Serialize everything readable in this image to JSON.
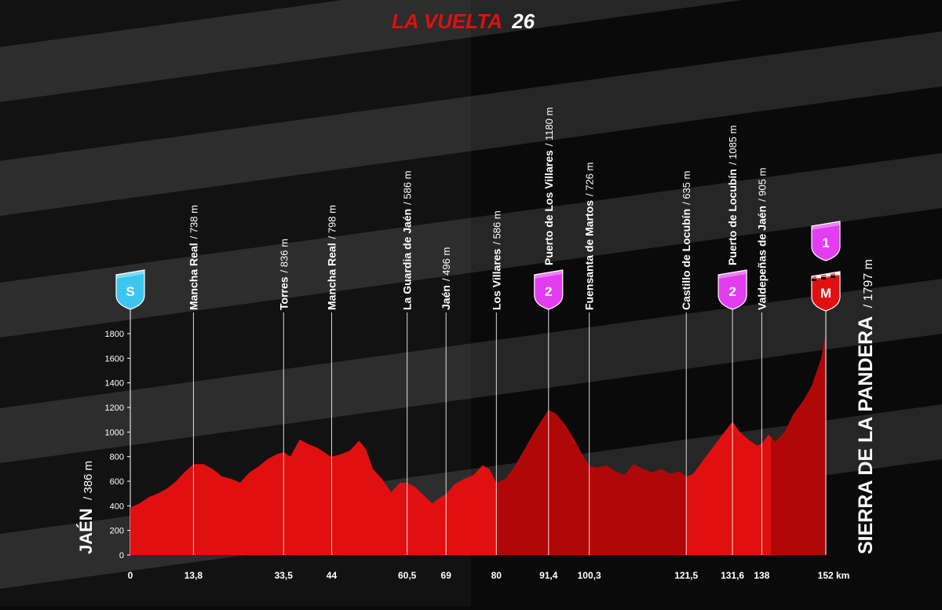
{
  "header": {
    "brand": "LA VUELTA",
    "edition": "26"
  },
  "colors": {
    "profile": "#e01010",
    "profile_dark": "#b00808",
    "start_badge": "#3cc6ef",
    "kom_badge": "#e23df0",
    "finish_badge": "#e01010",
    "background": "#0a0a0a",
    "stripe": "#262626"
  },
  "start": {
    "name": "JAÉN",
    "altitude": "/ 386 m",
    "badge": "S",
    "icon": "start-flag-icon"
  },
  "finish": {
    "name": "SIERRA DE LA PANDERA",
    "altitude": "/ 1797 m",
    "badge_top": "1",
    "badge_bottom": "M",
    "icon": "finish-flag-icon"
  },
  "chart_data": {
    "type": "area",
    "title": "",
    "xlabel": "",
    "ylabel": "",
    "xlim": [
      0,
      152
    ],
    "ylim": [
      0,
      1800
    ],
    "y_ticks": [
      0,
      200,
      400,
      600,
      800,
      1000,
      1200,
      1400,
      1600,
      1800
    ],
    "x_tick_labels": [
      "0",
      "13,8",
      "33,5",
      "44",
      "60,5",
      "69",
      "80",
      "91,4",
      "100,3",
      "121,5",
      "131,6",
      "138",
      "152 km"
    ],
    "x_tick_values": [
      0,
      13.8,
      33.5,
      44,
      60.5,
      69,
      80,
      91.4,
      100.3,
      121.5,
      131.6,
      138,
      152
    ],
    "grid": false,
    "series": [
      {
        "x": [
          0,
          2,
          4,
          6,
          8,
          10,
          12,
          13.8,
          16,
          18,
          20,
          22,
          24,
          26,
          28,
          30,
          32,
          33.5,
          35,
          37,
          39,
          41,
          43,
          44,
          46,
          48,
          50,
          51.5,
          53,
          55,
          57,
          59,
          60.5,
          62,
          64,
          66,
          67,
          69,
          71,
          73,
          75,
          77,
          78.5,
          80,
          82,
          84,
          86,
          88,
          90,
          91.4,
          93,
          95,
          97,
          99,
          100.3,
          102,
          104,
          106,
          108,
          110,
          112,
          114,
          116,
          118,
          120,
          121.5,
          123,
          125,
          127,
          129,
          131.6,
          133,
          135,
          137,
          138,
          139.5,
          141,
          143,
          145,
          147,
          149,
          151,
          152
        ],
        "y": [
          386,
          420,
          470,
          500,
          540,
          600,
          680,
          738,
          740,
          700,
          640,
          620,
          590,
          670,
          720,
          780,
          820,
          836,
          800,
          940,
          900,
          870,
          820,
          798,
          820,
          850,
          930,
          860,
          700,
          620,
          510,
          590,
          586,
          560,
          490,
          420,
          450,
          496,
          580,
          620,
          650,
          730,
          700,
          586,
          620,
          720,
          850,
          980,
          1100,
          1180,
          1150,
          1060,
          940,
          800,
          726,
          710,
          730,
          680,
          650,
          740,
          700,
          670,
          700,
          660,
          680,
          635,
          660,
          760,
          860,
          960,
          1085,
          1010,
          940,
          890,
          905,
          980,
          920,
          1000,
          1150,
          1250,
          1380,
          1600,
          1797
        ]
      }
    ],
    "waypoints": [
      {
        "km": 13.8,
        "name": "Mancha Real",
        "altitude": "/ 738 m"
      },
      {
        "km": 33.5,
        "name": "Torres",
        "altitude": "/ 836 m"
      },
      {
        "km": 44,
        "name": "Mancha Real",
        "altitude": "/ 798 m"
      },
      {
        "km": 60.5,
        "name": "La Guardia de Jaén",
        "altitude": "/ 586 m"
      },
      {
        "km": 69,
        "name": "Jaén",
        "altitude": "/ 496 m"
      },
      {
        "km": 80,
        "name": "Los Villares",
        "altitude": "/ 586 m"
      },
      {
        "km": 91.4,
        "name": "Puerto de Los Villares",
        "altitude": "/ 1180 m",
        "badge": "2"
      },
      {
        "km": 100.3,
        "name": "Fuensanta de Martos",
        "altitude": "/ 726 m"
      },
      {
        "km": 121.5,
        "name": "Castillo de Locubín",
        "altitude": "/ 635 m"
      },
      {
        "km": 131.6,
        "name": "Puerto de Locubín",
        "altitude": "/ 1085 m",
        "badge": "2"
      },
      {
        "km": 138,
        "name": "Valdepeñas de Jaén",
        "altitude": "/ 905 m"
      }
    ],
    "shaded_sections": [
      {
        "from": 80,
        "to": 121.5
      },
      {
        "from": 140,
        "to": 152
      }
    ]
  }
}
